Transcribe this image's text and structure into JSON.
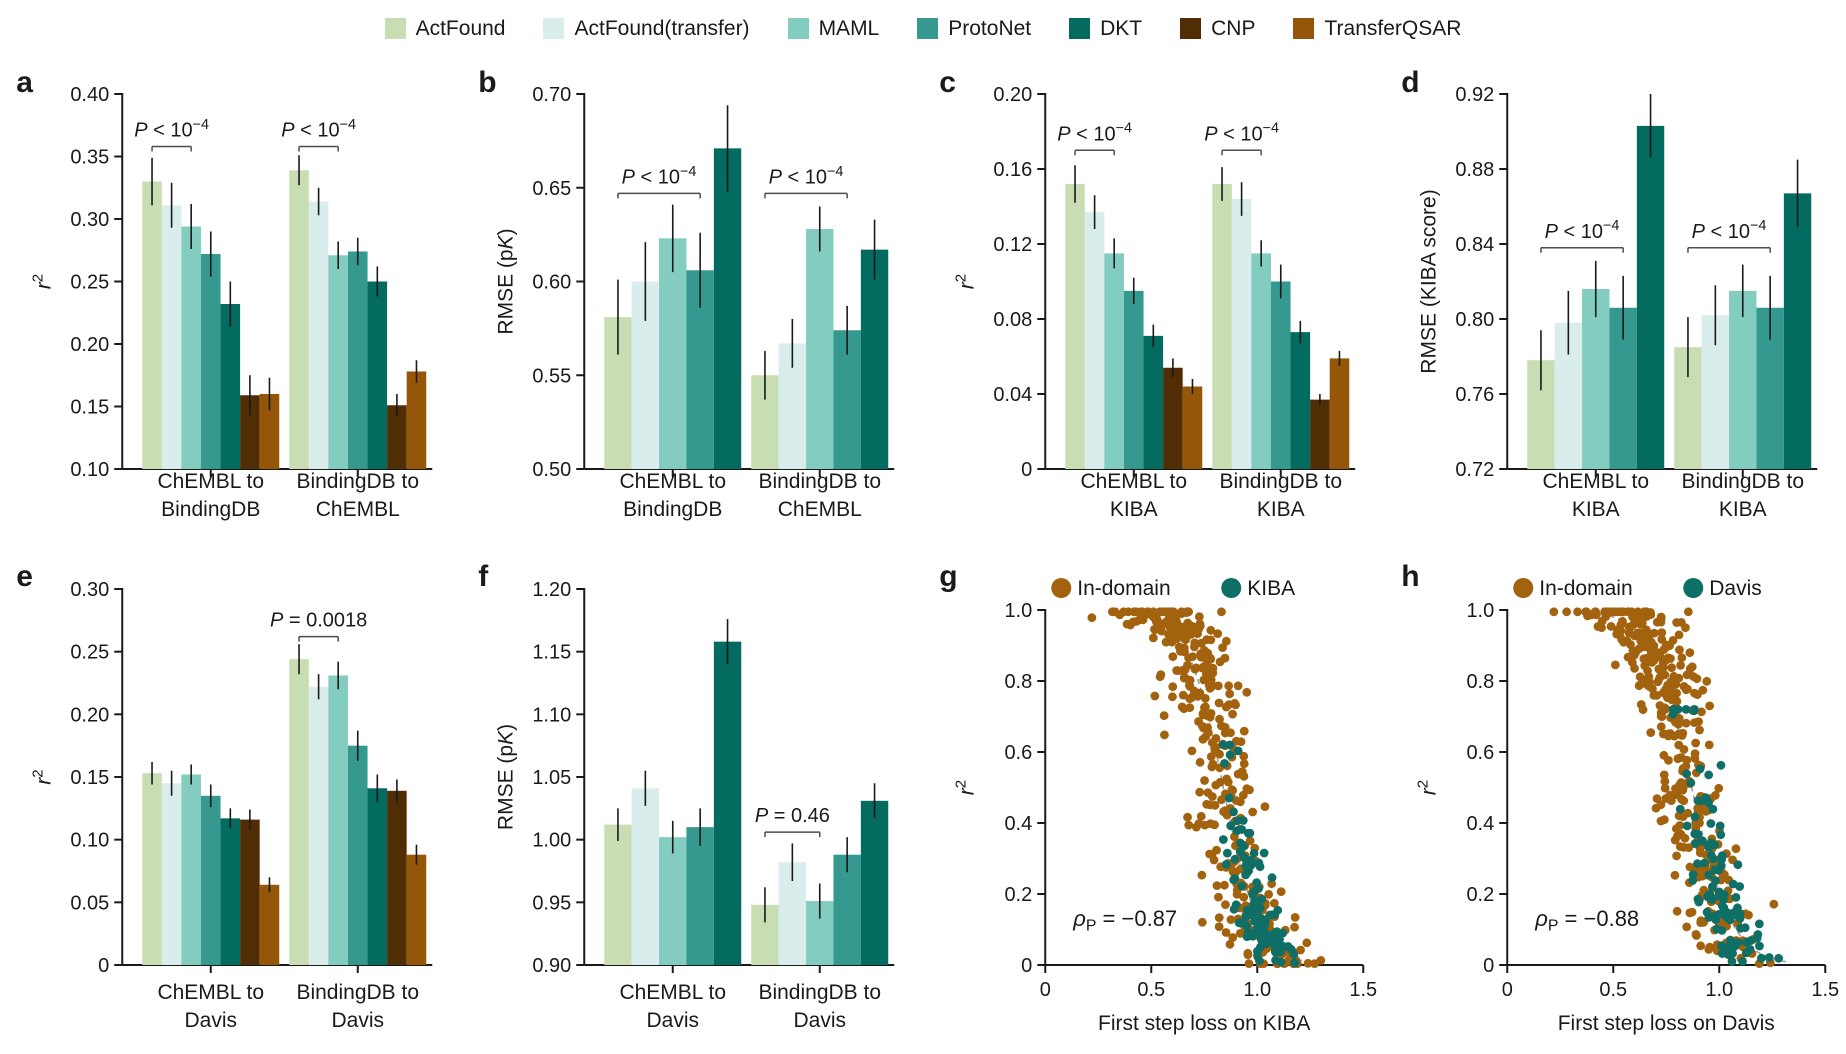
{
  "figure": {
    "legend": {
      "items": [
        {
          "label": "ActFound",
          "color": "#c8ddb1"
        },
        {
          "label": "ActFound(transfer)",
          "color": "#d9edec"
        },
        {
          "label": "MAML",
          "color": "#82cdbf"
        },
        {
          "label": "ProtoNet",
          "color": "#35998f"
        },
        {
          "label": "DKT",
          "color": "#046b60"
        },
        {
          "label": "CNP",
          "color": "#512d05"
        },
        {
          "label": "TransferQSAR",
          "color": "#96560a"
        }
      ]
    },
    "chart_data": [
      {
        "id": "a",
        "type": "bar",
        "letter": "a",
        "ylabel_parts": [
          {
            "text": "r",
            "italic": true
          },
          {
            "text": "2",
            "sup": true
          }
        ],
        "ylim": [
          0.1,
          0.4
        ],
        "yticks": [
          0.1,
          0.15,
          0.2,
          0.25,
          0.3,
          0.35,
          0.4
        ],
        "ytick_labels": [
          "0.10",
          "0.15",
          "0.20",
          "0.25",
          "0.30",
          "0.35",
          "0.40"
        ],
        "series_idx": [
          0,
          1,
          2,
          3,
          4,
          5,
          6
        ],
        "categories": [
          [
            "ChEMBL to",
            "BindingDB"
          ],
          [
            "BindingDB to",
            "ChEMBL"
          ]
        ],
        "groups": [
          {
            "values": [
              0.33,
              0.311,
              0.294,
              0.272,
              0.232,
              0.159,
              0.16
            ],
            "errors": [
              0.019,
              0.018,
              0.018,
              0.018,
              0.018,
              0.016,
              0.013
            ]
          },
          {
            "values": [
              0.339,
              0.314,
              0.271,
              0.274,
              0.25,
              0.151,
              0.178
            ],
            "errors": [
              0.012,
              0.011,
              0.011,
              0.011,
              0.012,
              0.009,
              0.009
            ]
          }
        ],
        "annotations": [
          {
            "group": 0,
            "from": 0,
            "to": 2,
            "y": 0.358,
            "parts": [
              {
                "text": "P",
                "italic": true
              },
              {
                "text": " < 10"
              },
              {
                "text": "−4",
                "sup": true
              }
            ]
          },
          {
            "group": 1,
            "from": 0,
            "to": 2,
            "y": 0.358,
            "parts": [
              {
                "text": "P",
                "italic": true
              },
              {
                "text": " < 10"
              },
              {
                "text": "−4",
                "sup": true
              }
            ]
          }
        ]
      },
      {
        "id": "b",
        "type": "bar",
        "letter": "b",
        "ylabel_parts": [
          {
            "text": "RMSE (p"
          },
          {
            "text": "K",
            "italic": true
          },
          {
            "text": ")"
          }
        ],
        "ylim": [
          0.5,
          0.7
        ],
        "yticks": [
          0.5,
          0.55,
          0.6,
          0.65,
          0.7
        ],
        "ytick_labels": [
          "0.50",
          "0.55",
          "0.60",
          "0.65",
          "0.70"
        ],
        "series_idx": [
          0,
          1,
          2,
          3,
          4
        ],
        "categories": [
          [
            "ChEMBL to",
            "BindingDB"
          ],
          [
            "BindingDB to",
            "ChEMBL"
          ]
        ],
        "groups": [
          {
            "values": [
              0.581,
              0.6,
              0.623,
              0.606,
              0.671
            ],
            "errors": [
              0.02,
              0.021,
              0.018,
              0.02,
              0.023
            ]
          },
          {
            "values": [
              0.55,
              0.567,
              0.628,
              0.574,
              0.617
            ],
            "errors": [
              0.013,
              0.013,
              0.012,
              0.013,
              0.016
            ]
          }
        ],
        "annotations": [
          {
            "group": 0,
            "from": 0,
            "to": 3,
            "y": 0.647,
            "parts": [
              {
                "text": "P",
                "italic": true
              },
              {
                "text": " < 10"
              },
              {
                "text": "−4",
                "sup": true
              }
            ]
          },
          {
            "group": 1,
            "from": 0,
            "to": 3,
            "y": 0.647,
            "parts": [
              {
                "text": "P",
                "italic": true
              },
              {
                "text": " < 10"
              },
              {
                "text": "−4",
                "sup": true
              }
            ]
          }
        ]
      },
      {
        "id": "c",
        "type": "bar",
        "letter": "c",
        "ylabel_parts": [
          {
            "text": "r",
            "italic": true
          },
          {
            "text": "2",
            "sup": true
          }
        ],
        "ylim": [
          0,
          0.2
        ],
        "yticks": [
          0,
          0.04,
          0.08,
          0.12,
          0.16,
          0.2
        ],
        "ytick_labels": [
          "0",
          "0.04",
          "0.08",
          "0.12",
          "0.16",
          "0.20"
        ],
        "series_idx": [
          0,
          1,
          2,
          3,
          4,
          5,
          6
        ],
        "categories": [
          [
            "ChEMBL to",
            "KIBA"
          ],
          [
            "BindingDB to",
            "KIBA"
          ]
        ],
        "groups": [
          {
            "values": [
              0.152,
              0.137,
              0.115,
              0.095,
              0.071,
              0.054,
              0.044
            ],
            "errors": [
              0.01,
              0.009,
              0.008,
              0.007,
              0.006,
              0.005,
              0.004
            ]
          },
          {
            "values": [
              0.152,
              0.144,
              0.115,
              0.1,
              0.073,
              0.037,
              0.059
            ],
            "errors": [
              0.009,
              0.009,
              0.007,
              0.009,
              0.006,
              0.003,
              0.004
            ]
          }
        ],
        "annotations": [
          {
            "group": 0,
            "from": 0,
            "to": 2,
            "y": 0.17,
            "parts": [
              {
                "text": "P",
                "italic": true
              },
              {
                "text": " < 10"
              },
              {
                "text": "−4",
                "sup": true
              }
            ]
          },
          {
            "group": 1,
            "from": 0,
            "to": 2,
            "y": 0.17,
            "parts": [
              {
                "text": "P",
                "italic": true
              },
              {
                "text": " < 10"
              },
              {
                "text": "−4",
                "sup": true
              }
            ]
          }
        ]
      },
      {
        "id": "d",
        "type": "bar",
        "letter": "d",
        "ylabel_parts": [
          {
            "text": "RMSE (KIBA score)"
          }
        ],
        "ylim": [
          0.72,
          0.92
        ],
        "yticks": [
          0.72,
          0.76,
          0.8,
          0.84,
          0.88,
          0.92
        ],
        "ytick_labels": [
          "0.72",
          "0.76",
          "0.80",
          "0.84",
          "0.88",
          "0.92"
        ],
        "series_idx": [
          0,
          1,
          2,
          3,
          4
        ],
        "categories": [
          [
            "ChEMBL to",
            "KIBA"
          ],
          [
            "BindingDB to",
            "KIBA"
          ]
        ],
        "groups": [
          {
            "values": [
              0.778,
              0.798,
              0.816,
              0.806,
              0.903
            ],
            "errors": [
              0.016,
              0.017,
              0.015,
              0.017,
              0.017
            ]
          },
          {
            "values": [
              0.785,
              0.802,
              0.815,
              0.806,
              0.867
            ],
            "errors": [
              0.016,
              0.016,
              0.014,
              0.017,
              0.018
            ]
          }
        ],
        "annotations": [
          {
            "group": 0,
            "from": 0,
            "to": 3,
            "y": 0.838,
            "parts": [
              {
                "text": "P",
                "italic": true
              },
              {
                "text": " < 10"
              },
              {
                "text": "−4",
                "sup": true
              }
            ]
          },
          {
            "group": 1,
            "from": 0,
            "to": 3,
            "y": 0.838,
            "parts": [
              {
                "text": "P",
                "italic": true
              },
              {
                "text": " < 10"
              },
              {
                "text": "−4",
                "sup": true
              }
            ]
          }
        ]
      },
      {
        "id": "e",
        "type": "bar",
        "letter": "e",
        "ylabel_parts": [
          {
            "text": "r",
            "italic": true
          },
          {
            "text": "2",
            "sup": true
          }
        ],
        "ylim": [
          0,
          0.3
        ],
        "yticks": [
          0,
          0.05,
          0.1,
          0.15,
          0.2,
          0.25,
          0.3
        ],
        "ytick_labels": [
          "0",
          "0.05",
          "0.10",
          "0.15",
          "0.20",
          "0.25",
          "0.30"
        ],
        "series_idx": [
          0,
          1,
          2,
          3,
          4,
          5,
          6
        ],
        "categories": [
          [
            "ChEMBL to",
            "Davis"
          ],
          [
            "BindingDB to",
            "Davis"
          ]
        ],
        "groups": [
          {
            "values": [
              0.153,
              0.145,
              0.152,
              0.135,
              0.117,
              0.116,
              0.064
            ],
            "errors": [
              0.009,
              0.01,
              0.008,
              0.009,
              0.008,
              0.008,
              0.006
            ]
          },
          {
            "values": [
              0.244,
              0.222,
              0.231,
              0.175,
              0.141,
              0.139,
              0.088
            ],
            "errors": [
              0.012,
              0.01,
              0.011,
              0.012,
              0.011,
              0.009,
              0.008
            ]
          }
        ],
        "annotations": [
          {
            "group": 1,
            "from": 0,
            "to": 2,
            "y": 0.262,
            "parts": [
              {
                "text": "P",
                "italic": true
              },
              {
                "text": " = 0.0018"
              }
            ]
          }
        ]
      },
      {
        "id": "f",
        "type": "bar",
        "letter": "f",
        "ylabel_parts": [
          {
            "text": "RMSE (p"
          },
          {
            "text": "K",
            "italic": true
          },
          {
            "text": ")"
          }
        ],
        "ylim": [
          0.9,
          1.2
        ],
        "yticks": [
          0.9,
          0.95,
          1.0,
          1.05,
          1.1,
          1.15,
          1.2
        ],
        "ytick_labels": [
          "0.90",
          "0.95",
          "1.00",
          "1.05",
          "1.10",
          "1.15",
          "1.20"
        ],
        "series_idx": [
          0,
          1,
          2,
          3,
          4
        ],
        "categories": [
          [
            "ChEMBL to",
            "Davis"
          ],
          [
            "BindingDB to",
            "Davis"
          ]
        ],
        "groups": [
          {
            "values": [
              1.012,
              1.041,
              1.002,
              1.01,
              1.158
            ],
            "errors": [
              0.013,
              0.014,
              0.013,
              0.015,
              0.018
            ]
          },
          {
            "values": [
              0.948,
              0.982,
              0.951,
              0.988,
              1.031
            ],
            "errors": [
              0.014,
              0.015,
              0.014,
              0.014,
              0.014
            ]
          }
        ],
        "annotations": [
          {
            "group": 1,
            "from": 0,
            "to": 2,
            "y": 1.006,
            "parts": [
              {
                "text": "P",
                "italic": true
              },
              {
                "text": " = 0.46"
              }
            ]
          }
        ]
      },
      {
        "id": "g",
        "type": "scatter",
        "letter": "g",
        "ylabel_parts": [
          {
            "text": "r",
            "italic": true
          },
          {
            "text": "2",
            "sup": true
          }
        ],
        "xlabel": "First step loss on KIBA",
        "xlim": [
          0,
          1.5
        ],
        "xticks": [
          0,
          0.5,
          1.0,
          1.5
        ],
        "xtick_labels": [
          "0",
          "0.5",
          "1.0",
          "1.5"
        ],
        "ylim": [
          0,
          1.0
        ],
        "yticks": [
          0,
          0.2,
          0.4,
          0.6,
          0.8,
          1.0
        ],
        "ytick_labels": [
          "0",
          "0.2",
          "0.4",
          "0.6",
          "0.8",
          "1.0"
        ],
        "legend": [
          {
            "label": "In-domain",
            "color": "#a3620e"
          },
          {
            "label": "KIBA",
            "color": "#0f6f66"
          }
        ],
        "annotation_parts": [
          {
            "text": "ρ",
            "italic": true
          },
          {
            "text": "P",
            "sub": true
          },
          {
            "text": " = −0.87"
          }
        ],
        "trend": {
          "mid": 0.84,
          "k": 0.085
        },
        "series": [
          {
            "name": "In-domain",
            "color": "#a3620e",
            "n": 380,
            "seed": 11,
            "x": {
              "mean": 0.8,
              "sd": 0.185,
              "clip": [
                0.22,
                1.3
              ]
            },
            "jitter": [
              0.09,
              0.035
            ],
            "y_clip": [
              0.004,
              0.995
            ]
          },
          {
            "name": "KIBA",
            "color": "#0f6f66",
            "n": 115,
            "seed": 12,
            "x": {
              "mean": 1.0,
              "sd": 0.075,
              "clip": [
                0.84,
                1.2
              ]
            },
            "jitter": [
              0.05,
              0.025
            ],
            "y_clip": [
              0.006,
              0.62
            ]
          }
        ]
      },
      {
        "id": "h",
        "type": "scatter",
        "letter": "h",
        "ylabel_parts": [
          {
            "text": "r",
            "italic": true
          },
          {
            "text": "2",
            "sup": true
          }
        ],
        "xlabel": "First step loss on Davis",
        "xlim": [
          0,
          1.5
        ],
        "xticks": [
          0,
          0.5,
          1.0,
          1.5
        ],
        "xtick_labels": [
          "0",
          "0.5",
          "1.0",
          "1.5"
        ],
        "ylim": [
          0,
          1.0
        ],
        "yticks": [
          0,
          0.2,
          0.4,
          0.6,
          0.8,
          1.0
        ],
        "ytick_labels": [
          "0",
          "0.2",
          "0.4",
          "0.6",
          "0.8",
          "1.0"
        ],
        "legend": [
          {
            "label": "In-domain",
            "color": "#a3620e"
          },
          {
            "label": "Davis",
            "color": "#0f6f66"
          }
        ],
        "annotation_parts": [
          {
            "text": "ρ",
            "italic": true
          },
          {
            "text": "P",
            "sub": true
          },
          {
            "text": " = −0.88"
          }
        ],
        "trend": {
          "mid": 0.87,
          "k": 0.095
        },
        "series": [
          {
            "name": "In-domain",
            "color": "#a3620e",
            "n": 380,
            "seed": 21,
            "x": {
              "mean": 0.8,
              "sd": 0.185,
              "clip": [
                0.22,
                1.3
              ]
            },
            "jitter": [
              0.09,
              0.035
            ],
            "y_clip": [
              0.004,
              0.995
            ]
          },
          {
            "name": "Davis",
            "color": "#0f6f66",
            "n": 105,
            "seed": 22,
            "x": {
              "mean": 0.99,
              "sd": 0.1,
              "clip": [
                0.76,
                1.28
              ]
            },
            "jitter": [
              0.06,
              0.03
            ],
            "y_clip": [
              0.01,
              0.72
            ]
          }
        ]
      }
    ]
  }
}
